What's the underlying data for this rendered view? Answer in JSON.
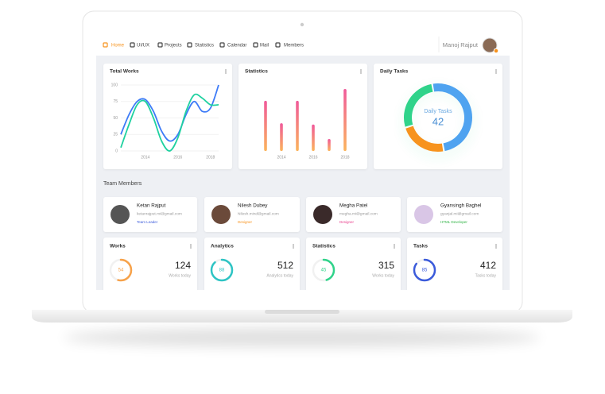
{
  "nav": {
    "items": [
      "Home",
      "UI/UX",
      "Projects",
      "Statistics",
      "Calendar",
      "Mail",
      "Members"
    ],
    "active_color": "#f7931e",
    "user": "Manoj Rajput"
  },
  "cards": [
    {
      "title": "Total Works",
      "chart": {
        "type": "line",
        "x": [
          2012.5,
          2013,
          2013.5,
          2014,
          2014.5,
          2015,
          2015.5,
          2016,
          2016.5,
          2017,
          2017.5,
          2018,
          2018.5
        ],
        "xlim": [
          2012.5,
          2018.5
        ],
        "xticks": [
          2014,
          2016,
          2018
        ],
        "ylim": [
          0,
          100
        ],
        "yticks": [
          0,
          25,
          50,
          75,
          100
        ],
        "grid": true,
        "series": [
          {
            "color": "#3d7bf7",
            "values": [
              25,
              55,
              75,
              78,
              60,
              30,
              15,
              25,
              55,
              75,
              60,
              65,
              100
            ]
          },
          {
            "color": "#1fd1a0",
            "values": [
              5,
              40,
              70,
              75,
              50,
              15,
              0,
              20,
              60,
              85,
              80,
              70,
              70
            ]
          }
        ]
      }
    },
    {
      "title": "Statistics",
      "chart": {
        "type": "bar",
        "categories": [
          null,
          "2014",
          null,
          "2016",
          null,
          "2018"
        ],
        "values": [
          76,
          42,
          76,
          40,
          18,
          94
        ],
        "ylim": [
          0,
          100
        ],
        "colors": [
          "#f05a9b",
          "#fbb45c"
        ]
      }
    },
    {
      "title": "Daily Tasks",
      "chart": {
        "type": "pie",
        "center_label": "Daily Tasks",
        "center_value": 42,
        "values": [
          50,
          23,
          27
        ],
        "colors": [
          "#4fa3f0",
          "#f7931e",
          "#2fd38a"
        ]
      }
    }
  ],
  "team": {
    "title": "Team Members",
    "members": [
      {
        "name": "Ketan Rajput",
        "email": "ketanrajput.mi@gmail.com",
        "role": "Team Leader",
        "color": "#3b5bdb"
      },
      {
        "name": "Nilesh Dubey",
        "email": "Nilesh.mind@gmail.com",
        "role": "Designer",
        "color": "#f7931e"
      },
      {
        "name": "Megha Patel",
        "email": "megha.mi@gmail.com",
        "role": "Designer",
        "color": "#e83e8c"
      },
      {
        "name": "Gyansingh Baghel",
        "email": "gyanjal.mi@gmail.com",
        "role": "HTML Developer",
        "color": "#2fb344"
      }
    ]
  },
  "stats": [
    {
      "title": "Works",
      "percent": 54,
      "value": 124,
      "caption": "Works today",
      "color": "#f7a24a"
    },
    {
      "title": "Analytics",
      "percent": 88,
      "value": 512,
      "caption": "Analytics today",
      "color": "#2ec4c4"
    },
    {
      "title": "Statistics",
      "percent": 45,
      "value": 315,
      "caption": "Works today",
      "color": "#2fd38a"
    },
    {
      "title": "Tasks",
      "percent": 85,
      "value": 412,
      "caption": "Tasks today",
      "color": "#3b5bdb"
    }
  ]
}
